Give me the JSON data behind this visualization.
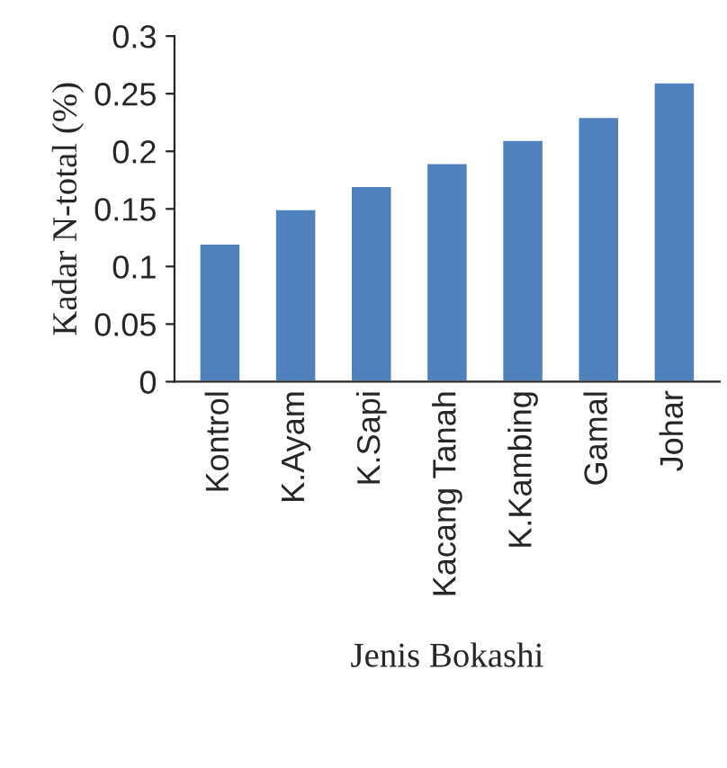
{
  "chart_data": {
    "type": "bar",
    "xlabel": "Jenis Bokashi",
    "ylabel": "Kadar N-total (%)",
    "categories": [
      "Kontrol",
      "K.Ayam",
      "K.Sapi",
      "Kacang Tanah",
      "K.Kambing",
      "Gamal",
      "Johar"
    ],
    "values": [
      0.12,
      0.15,
      0.17,
      0.19,
      0.21,
      0.23,
      0.26
    ],
    "color": "#4f81bd",
    "ylim": [
      0,
      0.3
    ],
    "yticks": [
      0,
      0.05,
      0.1,
      0.15,
      0.2,
      0.25,
      0.3
    ],
    "grid": false,
    "legend": false
  }
}
